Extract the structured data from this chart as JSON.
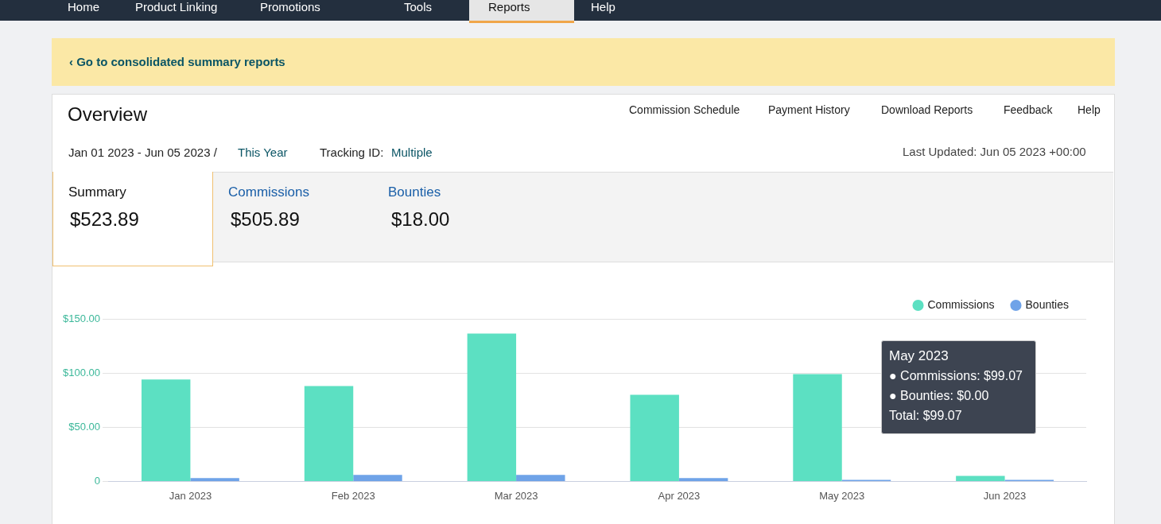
{
  "chart_data": {
    "type": "bar",
    "title": "Overview",
    "categories": [
      "Jan 2023",
      "Feb 2023",
      "Mar 2023",
      "Apr 2023",
      "May 2023",
      "Jun 2023"
    ],
    "series": [
      {
        "name": "Commissions",
        "color": "#5ce0c2",
        "values": [
          94,
          88,
          136.5,
          80,
          99.07,
          5
        ]
      },
      {
        "name": "Bounties",
        "color": "#6fa3e8",
        "values": [
          3,
          6,
          6,
          3,
          0,
          0
        ]
      }
    ],
    "ylim": [
      0,
      150
    ],
    "yticks": [
      0,
      {
        "value": 50,
        "label": "$50.00"
      },
      {
        "value": 100,
        "label": "$100.00"
      },
      {
        "value": 150,
        "label": "$150.00"
      }
    ],
    "grid": "y",
    "legend": "top right",
    "annotations": [
      "Home",
      "Product Linking",
      "Promotions",
      "Tools",
      "Reports",
      "Help",
      "‹ Go to consolidated summary reports",
      "Commission Schedule",
      "Payment History",
      "Download Reports",
      "Feedback",
      "Help",
      "Jan 01 2023 - Jun 05 2023 /",
      "This Year",
      "Tracking ID:",
      "Multiple",
      "Last Updated: Jun 05 2023 +00:00",
      "Summary",
      "$523.89",
      "Commissions",
      "$505.89",
      "Bounties",
      "$18.00",
      "May 2023",
      "● Commissions: $99.07",
      "● Bounties: $0.00",
      "Total: $99.07"
    ]
  }
}
